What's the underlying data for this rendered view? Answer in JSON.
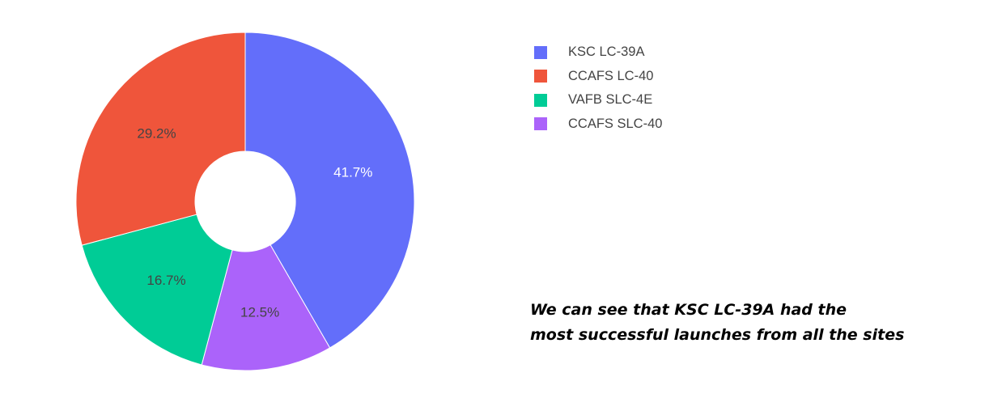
{
  "chart_data": {
    "type": "pie",
    "hole": true,
    "categories": [
      "KSC LC-39A",
      "CCAFS LC-40",
      "VAFB SLC-4E",
      "CCAFS SLC-40"
    ],
    "values": [
      41.7,
      29.2,
      16.7,
      12.5
    ],
    "slice_labels": [
      "41.7%",
      "29.2%",
      "16.7%",
      "12.5%"
    ],
    "draw_order": [
      "KSC LC-39A",
      "CCAFS SLC-40",
      "VAFB SLC-4E",
      "CCAFS LC-40"
    ],
    "colors": {
      "KSC LC-39A": "#636efa",
      "CCAFS LC-40": "#ef553b",
      "VAFB SLC-4E": "#00cc96",
      "CCAFS SLC-40": "#ab63fa"
    },
    "label_colors": {
      "KSC LC-39A": "#ffffff",
      "CCAFS LC-40": "#444444",
      "VAFB SLC-4E": "#444444",
      "CCAFS SLC-40": "#444444"
    },
    "legend_position": "top-right"
  },
  "caption": {
    "line1": "We can see that KSC LC-39A had the",
    "line2": "most successful launches from all the sites"
  }
}
